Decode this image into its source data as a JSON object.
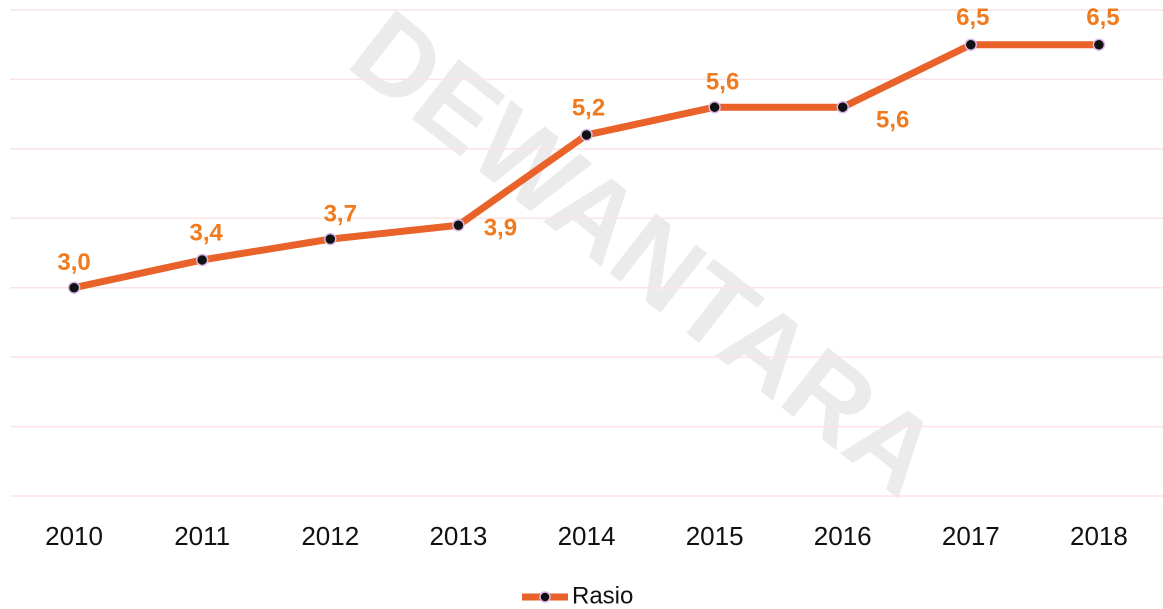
{
  "chart_data": {
    "type": "line",
    "categories": [
      "2010",
      "2011",
      "2012",
      "2013",
      "2014",
      "2015",
      "2016",
      "2017",
      "2018"
    ],
    "series": [
      {
        "name": "Rasio",
        "color": "#e8622a",
        "values": [
          3.0,
          3.4,
          3.7,
          3.9,
          5.2,
          5.6,
          5.6,
          6.5,
          6.5
        ],
        "value_labels": [
          "3,0",
          "3,4",
          "3,7",
          "3,9",
          "5,2",
          "5,6",
          "5,6",
          "6,5",
          "6,5"
        ]
      }
    ],
    "label_color": "#f07a1e",
    "ylim": [
      0,
      7
    ],
    "yticks": [
      0,
      1,
      2,
      3,
      4,
      5,
      6,
      7
    ],
    "grid": true,
    "legend": "bottom",
    "watermark": "DEWANTARA"
  }
}
